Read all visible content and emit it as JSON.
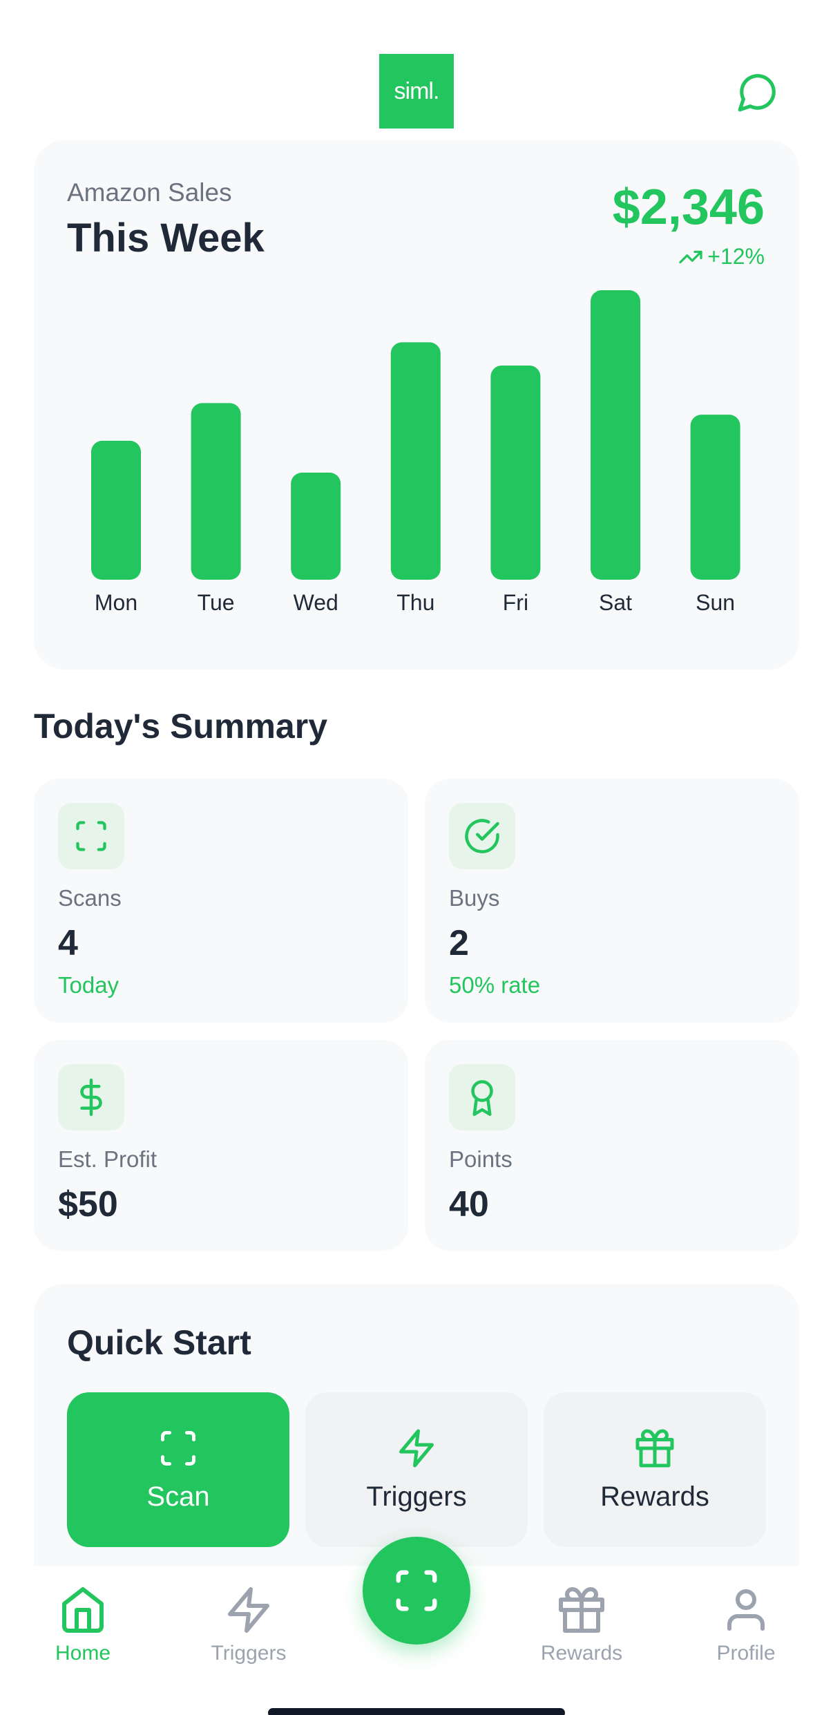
{
  "header": {
    "logo_text": "siml."
  },
  "sales": {
    "label": "Amazon Sales",
    "title": "This Week",
    "amount": "$2,346",
    "change": "+12%"
  },
  "chart_data": {
    "type": "bar",
    "categories": [
      "Mon",
      "Tue",
      "Wed",
      "Thu",
      "Fri",
      "Sat",
      "Sun"
    ],
    "values": [
      0.48,
      0.61,
      0.37,
      0.82,
      0.74,
      1.0,
      0.57
    ],
    "title": "",
    "xlabel": "",
    "ylabel": "",
    "ylim": [
      0,
      1
    ],
    "grid": false,
    "color": "#22c55e"
  },
  "summary": {
    "title": "Today's Summary",
    "cards": [
      {
        "label": "Scans",
        "value": "4",
        "sub": "Today",
        "icon": "scan-icon"
      },
      {
        "label": "Buys",
        "value": "2",
        "sub": "50% rate",
        "icon": "check-circle-icon"
      },
      {
        "label": "Est. Profit",
        "value": "$50",
        "icon": "dollar-icon"
      },
      {
        "label": "Points",
        "value": "40",
        "icon": "award-icon"
      }
    ]
  },
  "quick_start": {
    "title": "Quick Start",
    "buttons": [
      {
        "label": "Scan",
        "icon": "scan-icon"
      },
      {
        "label": "Triggers",
        "icon": "lightning-icon"
      },
      {
        "label": "Rewards",
        "icon": "gift-icon"
      }
    ]
  },
  "nav": {
    "items": [
      {
        "label": "Home",
        "icon": "home-icon",
        "active": true
      },
      {
        "label": "Triggers",
        "icon": "lightning-icon"
      },
      {
        "label": "Rewards",
        "icon": "gift-icon"
      },
      {
        "label": "Profile",
        "icon": "user-icon"
      }
    ],
    "center_icon": "scan-icon"
  },
  "colors": {
    "accent": "#22c55e",
    "card_bg": "#f8f9fa",
    "muted": "#6b7280"
  }
}
